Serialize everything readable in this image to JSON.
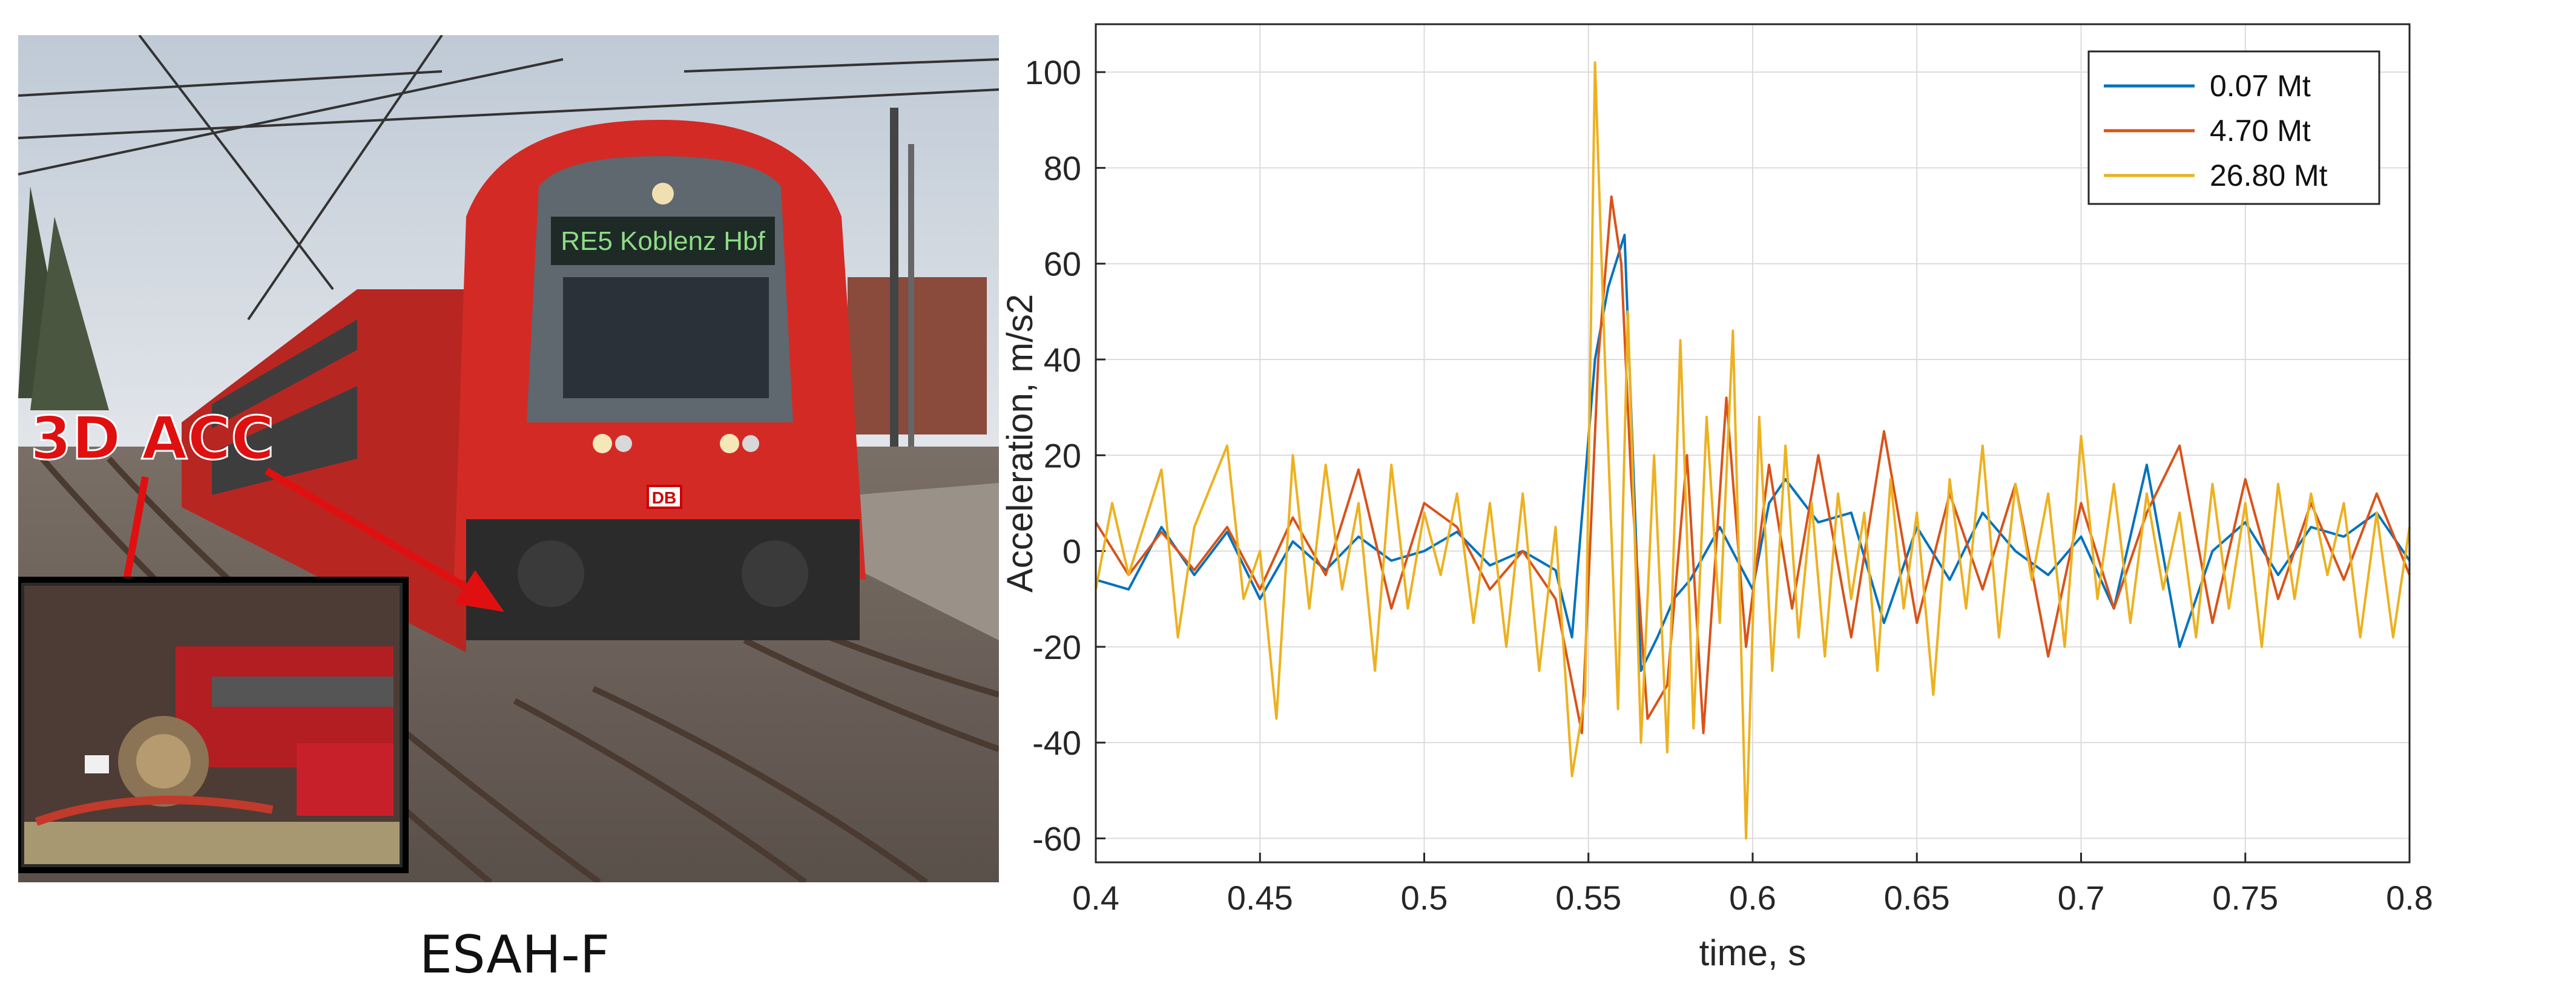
{
  "photo": {
    "caption": "ESAH-F",
    "sensor_label": "3D ACC",
    "destination_display": "RE5 Koblenz Hbf",
    "logo_text": "DB",
    "colors": {
      "train_red": "#d42a25",
      "sensor_label": "#e01010",
      "sky": "#c9d3dd"
    }
  },
  "chart_data": {
    "type": "line",
    "xlabel": "time, s",
    "ylabel": "Acceleration, m/s2",
    "xlim": [
      0.4,
      0.8
    ],
    "ylim": [
      -65,
      110
    ],
    "xticks": [
      "0.4",
      "0.45",
      "0.5",
      "0.55",
      "0.6",
      "0.65",
      "0.7",
      "0.75",
      "0.8"
    ],
    "yticks": [
      "100",
      "80",
      "60",
      "40",
      "20",
      "0",
      "-20",
      "-40",
      "-60"
    ],
    "grid": true,
    "legend_position": "top-right",
    "series": [
      {
        "name": "0.07 Mt",
        "color": "#0072bd",
        "x": [
          0.4,
          0.41,
          0.42,
          0.43,
          0.44,
          0.45,
          0.46,
          0.47,
          0.48,
          0.49,
          0.5,
          0.51,
          0.52,
          0.53,
          0.54,
          0.545,
          0.552,
          0.556,
          0.561,
          0.566,
          0.571,
          0.576,
          0.581,
          0.59,
          0.6,
          0.605,
          0.61,
          0.62,
          0.63,
          0.64,
          0.65,
          0.66,
          0.67,
          0.68,
          0.69,
          0.7,
          0.71,
          0.72,
          0.73,
          0.74,
          0.75,
          0.76,
          0.77,
          0.78,
          0.79,
          0.8
        ],
        "y": [
          -6,
          -8,
          5,
          -5,
          4,
          -10,
          2,
          -4,
          3,
          -2,
          0,
          4,
          -3,
          0,
          -4,
          -18,
          40,
          55,
          66,
          -25,
          -18,
          -10,
          -6,
          5,
          -8,
          10,
          15,
          6,
          8,
          -15,
          5,
          -6,
          8,
          0,
          -5,
          3,
          -12,
          18,
          -20,
          0,
          6,
          -5,
          5,
          3,
          8,
          -2
        ]
      },
      {
        "name": "4.70 Mt",
        "color": "#d95319",
        "x": [
          0.4,
          0.41,
          0.42,
          0.43,
          0.44,
          0.45,
          0.46,
          0.47,
          0.48,
          0.49,
          0.5,
          0.51,
          0.52,
          0.53,
          0.54,
          0.548,
          0.553,
          0.557,
          0.56,
          0.563,
          0.568,
          0.574,
          0.58,
          0.585,
          0.592,
          0.598,
          0.605,
          0.612,
          0.62,
          0.63,
          0.64,
          0.65,
          0.66,
          0.67,
          0.68,
          0.69,
          0.7,
          0.71,
          0.72,
          0.73,
          0.74,
          0.75,
          0.76,
          0.77,
          0.78,
          0.79,
          0.8
        ],
        "y": [
          6,
          -5,
          4,
          -4,
          5,
          -8,
          7,
          -5,
          17,
          -12,
          10,
          5,
          -8,
          0,
          -10,
          -38,
          40,
          74,
          60,
          15,
          -35,
          -28,
          20,
          -38,
          32,
          -20,
          18,
          -12,
          20,
          -18,
          25,
          -15,
          12,
          -8,
          14,
          -22,
          10,
          -12,
          8,
          22,
          -15,
          15,
          -10,
          10,
          -6,
          12,
          -5
        ]
      },
      {
        "name": "26.80 Mt",
        "color": "#edb120",
        "x": [
          0.4,
          0.405,
          0.41,
          0.42,
          0.425,
          0.43,
          0.44,
          0.445,
          0.45,
          0.455,
          0.46,
          0.465,
          0.47,
          0.475,
          0.48,
          0.485,
          0.49,
          0.495,
          0.5,
          0.505,
          0.51,
          0.515,
          0.52,
          0.525,
          0.53,
          0.535,
          0.54,
          0.545,
          0.549,
          0.552,
          0.555,
          0.559,
          0.562,
          0.566,
          0.57,
          0.574,
          0.578,
          0.582,
          0.586,
          0.59,
          0.594,
          0.598,
          0.602,
          0.606,
          0.61,
          0.614,
          0.618,
          0.622,
          0.626,
          0.63,
          0.634,
          0.638,
          0.642,
          0.646,
          0.65,
          0.655,
          0.66,
          0.665,
          0.67,
          0.675,
          0.68,
          0.685,
          0.69,
          0.695,
          0.7,
          0.705,
          0.71,
          0.715,
          0.72,
          0.725,
          0.73,
          0.735,
          0.74,
          0.745,
          0.75,
          0.755,
          0.76,
          0.765,
          0.77,
          0.775,
          0.78,
          0.785,
          0.79,
          0.795,
          0.8
        ],
        "y": [
          -8,
          10,
          -5,
          17,
          -18,
          5,
          22,
          -10,
          0,
          -35,
          20,
          -12,
          18,
          -8,
          10,
          -25,
          18,
          -12,
          8,
          -5,
          12,
          -15,
          10,
          -20,
          12,
          -25,
          5,
          -47,
          -30,
          102,
          40,
          -33,
          50,
          -40,
          20,
          -42,
          44,
          -37,
          28,
          -15,
          46,
          -60,
          28,
          -25,
          22,
          -18,
          10,
          -22,
          12,
          -10,
          8,
          -25,
          15,
          -12,
          8,
          -30,
          15,
          -12,
          22,
          -18,
          14,
          -6,
          12,
          -20,
          24,
          -10,
          14,
          -15,
          12,
          -8,
          8,
          -18,
          14,
          -12,
          10,
          -20,
          14,
          -10,
          12,
          -5,
          10,
          -18,
          8,
          -18,
          5
        ]
      }
    ]
  }
}
